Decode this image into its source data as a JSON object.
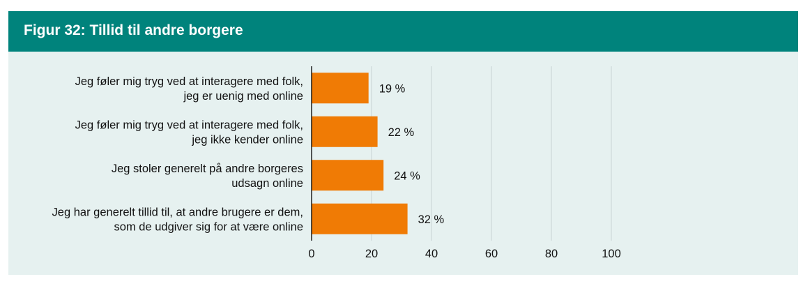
{
  "figure": {
    "title": "Figur 32: Tillid til andre borgere"
  },
  "colors": {
    "header": "#00837c",
    "background": "#e6f1f0",
    "bar": "#f07b05",
    "grid": "#c8d4d3"
  },
  "chart_data": {
    "type": "bar",
    "orientation": "horizontal",
    "categories": [
      [
        "Jeg føler mig tryg ved at interagere med folk,",
        "jeg er uenig med online"
      ],
      [
        "Jeg føler mig tryg ved at interagere med folk,",
        "jeg ikke kender online"
      ],
      [
        "Jeg stoler generelt på andre borgeres",
        "udsagn online"
      ],
      [
        "Jeg har generelt tillid til, at andre brugere er dem,",
        "som de udgiver sig for at være online"
      ]
    ],
    "values": [
      19,
      22,
      24,
      32
    ],
    "value_labels": [
      "19 %",
      "22 %",
      "24 %",
      "32 %"
    ],
    "xlim": [
      0,
      100
    ],
    "xticks": [
      0,
      20,
      40,
      60,
      80,
      100
    ],
    "xtick_labels": [
      "0",
      "20",
      "40",
      "60",
      "80",
      "100"
    ],
    "grid": true,
    "legend": false
  }
}
